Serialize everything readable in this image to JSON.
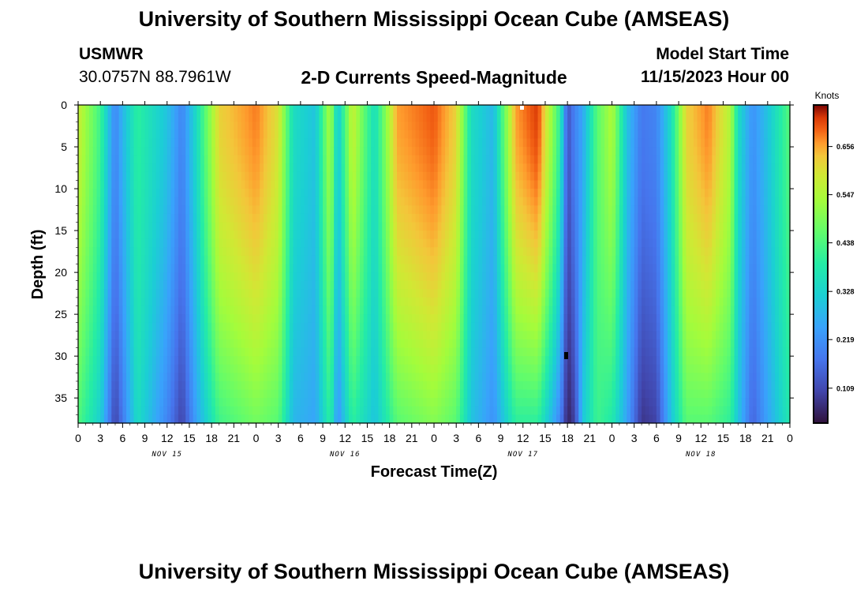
{
  "header": {
    "title": "University of Southern Mississippi Ocean Cube (AMSEAS)",
    "station": "USMWR",
    "coords": "30.0757N  88.7961W",
    "plot_title": "2-D Currents Speed-Magnitude",
    "model_start_label": "Model Start Time",
    "model_start_value": "11/15/2023 Hour 00",
    "footer_title": "University of Southern Mississippi Ocean Cube (AMSEAS)"
  },
  "chart_data": {
    "type": "heatmap",
    "title": "2-D Currents Speed-Magnitude",
    "xlabel": "Forecast Time(Z)",
    "ylabel": "Depth (ft)",
    "x_tick_labels": [
      "0",
      "3",
      "6",
      "9",
      "12",
      "15",
      "18",
      "21",
      "0",
      "3",
      "6",
      "9",
      "12",
      "15",
      "18",
      "21",
      "0",
      "3",
      "6",
      "9",
      "12",
      "15",
      "18",
      "21",
      "0",
      "3",
      "6",
      "9",
      "12",
      "15",
      "18",
      "21",
      "0"
    ],
    "x_range_hours": [
      0,
      96
    ],
    "date_labels": [
      {
        "label": "NOV 15",
        "hour": 12
      },
      {
        "label": "NOV 16",
        "hour": 36
      },
      {
        "label": "NOV 17",
        "hour": 60
      },
      {
        "label": "NOV 18",
        "hour": 84
      }
    ],
    "y_ticks": [
      0,
      5,
      10,
      15,
      20,
      25,
      30,
      35
    ],
    "y_range_ft": [
      0,
      38
    ],
    "colorbar": {
      "unit": "Knots",
      "min": 0.03,
      "max": 0.75,
      "ticks": [
        "0.109",
        "0.219",
        "0.328",
        "0.438",
        "0.547",
        "0.656"
      ]
    },
    "surface_speed_profile_knots": [
      {
        "hour": 0,
        "surface": 0.58,
        "bottom": 0.44
      },
      {
        "hour": 3,
        "surface": 0.42,
        "bottom": 0.32
      },
      {
        "hour": 5,
        "surface": 0.2,
        "bottom": 0.1
      },
      {
        "hour": 6,
        "surface": 0.28,
        "bottom": 0.18
      },
      {
        "hour": 8,
        "surface": 0.4,
        "bottom": 0.35
      },
      {
        "hour": 12,
        "surface": 0.3,
        "bottom": 0.2
      },
      {
        "hour": 14,
        "surface": 0.2,
        "bottom": 0.1
      },
      {
        "hour": 16,
        "surface": 0.35,
        "bottom": 0.25
      },
      {
        "hour": 19,
        "surface": 0.62,
        "bottom": 0.42
      },
      {
        "hour": 24,
        "surface": 0.68,
        "bottom": 0.48
      },
      {
        "hour": 27,
        "surface": 0.6,
        "bottom": 0.45
      },
      {
        "hour": 29,
        "surface": 0.35,
        "bottom": 0.28
      },
      {
        "hour": 32,
        "surface": 0.3,
        "bottom": 0.25
      },
      {
        "hour": 34,
        "surface": 0.55,
        "bottom": 0.4
      },
      {
        "hour": 35,
        "surface": 0.3,
        "bottom": 0.22
      },
      {
        "hour": 37,
        "surface": 0.58,
        "bottom": 0.4
      },
      {
        "hour": 40,
        "surface": 0.35,
        "bottom": 0.3
      },
      {
        "hour": 43,
        "surface": 0.66,
        "bottom": 0.45
      },
      {
        "hour": 48,
        "surface": 0.7,
        "bottom": 0.5
      },
      {
        "hour": 51,
        "surface": 0.62,
        "bottom": 0.45
      },
      {
        "hour": 53,
        "surface": 0.35,
        "bottom": 0.3
      },
      {
        "hour": 56,
        "surface": 0.28,
        "bottom": 0.22
      },
      {
        "hour": 59,
        "surface": 0.66,
        "bottom": 0.4
      },
      {
        "hour": 62,
        "surface": 0.72,
        "bottom": 0.4
      },
      {
        "hour": 65,
        "surface": 0.4,
        "bottom": 0.2
      },
      {
        "hour": 66,
        "surface": 0.12,
        "bottom": 0.05
      },
      {
        "hour": 67,
        "surface": 0.2,
        "bottom": 0.1
      },
      {
        "hour": 68,
        "surface": 0.25,
        "bottom": 0.3
      },
      {
        "hour": 70,
        "surface": 0.45,
        "bottom": 0.42
      },
      {
        "hour": 72,
        "surface": 0.55,
        "bottom": 0.38
      },
      {
        "hour": 74,
        "surface": 0.3,
        "bottom": 0.25
      },
      {
        "hour": 76,
        "surface": 0.18,
        "bottom": 0.08
      },
      {
        "hour": 78,
        "surface": 0.2,
        "bottom": 0.1
      },
      {
        "hour": 80,
        "surface": 0.35,
        "bottom": 0.3
      },
      {
        "hour": 82,
        "surface": 0.62,
        "bottom": 0.45
      },
      {
        "hour": 85,
        "surface": 0.68,
        "bottom": 0.45
      },
      {
        "hour": 88,
        "surface": 0.55,
        "bottom": 0.4
      },
      {
        "hour": 89,
        "surface": 0.35,
        "bottom": 0.3
      },
      {
        "hour": 91,
        "surface": 0.22,
        "bottom": 0.15
      },
      {
        "hour": 93,
        "surface": 0.3,
        "bottom": 0.25
      },
      {
        "hour": 96,
        "surface": 0.45,
        "bottom": 0.38
      }
    ]
  }
}
